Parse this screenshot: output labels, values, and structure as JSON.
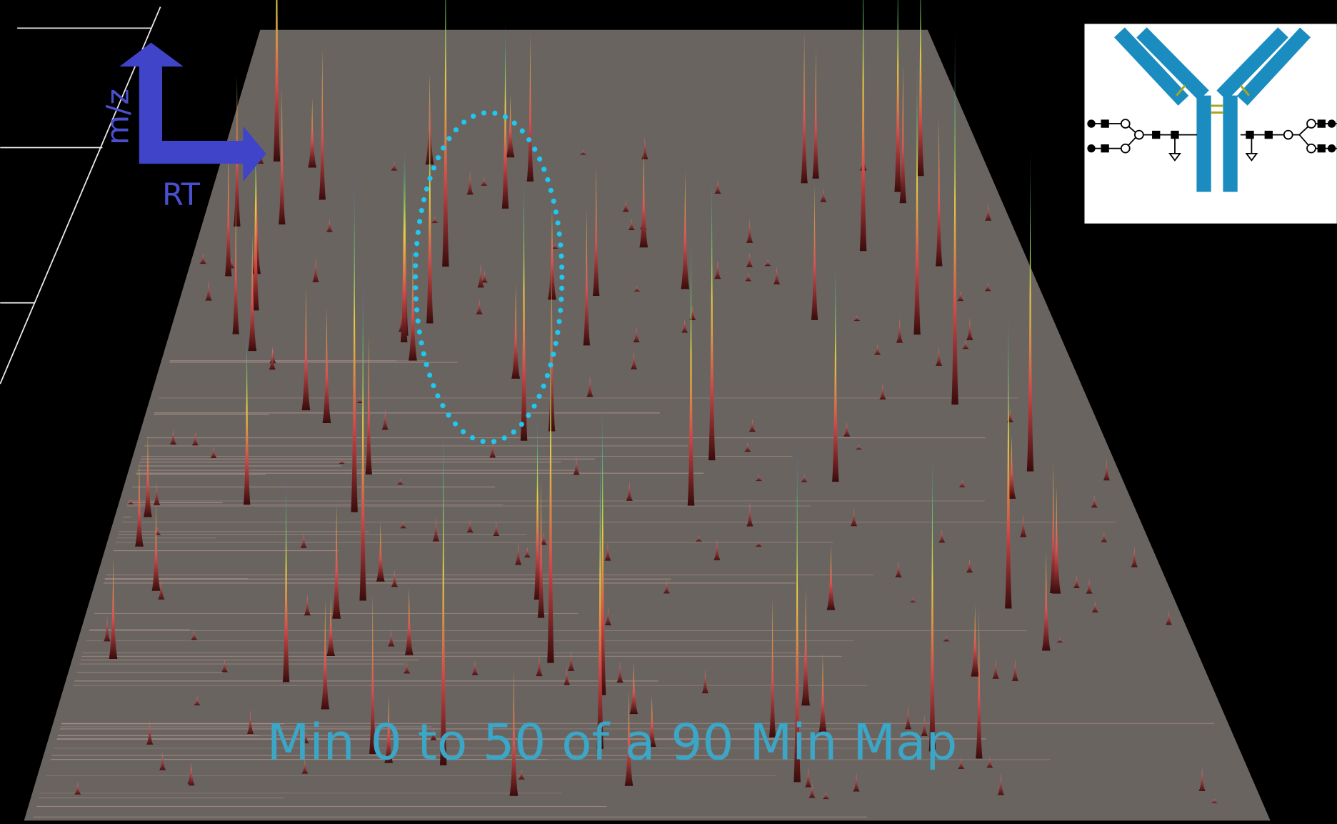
{
  "axes": {
    "y_label": "m/z",
    "x_label": "RT"
  },
  "caption": "Min 0 to 50 of a 90 Min Map"
}
